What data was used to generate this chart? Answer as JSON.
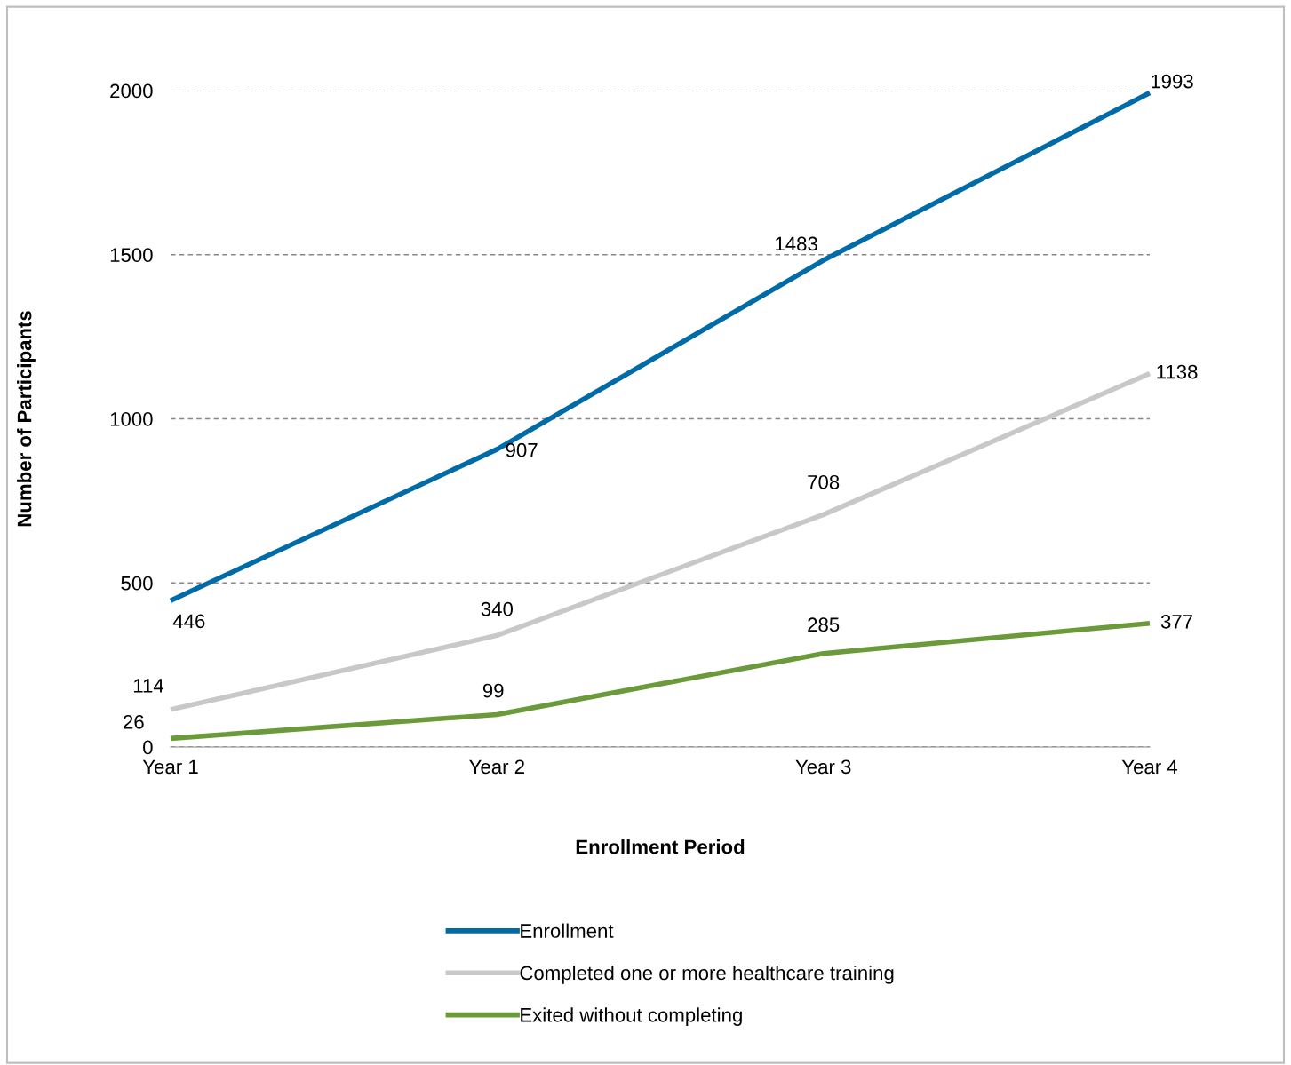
{
  "chart_data": {
    "type": "line",
    "xlabel": "Enrollment Period",
    "ylabel": "Number of Participants",
    "categories": [
      "Year 1",
      "Year 2",
      "Year 3",
      "Year 4"
    ],
    "series": [
      {
        "name": "Enrollment",
        "color": "#006ba6",
        "values": [
          446,
          907,
          1483,
          1993
        ]
      },
      {
        "name": "Completed one or more healthcare training",
        "color": "#c8c8c8",
        "values": [
          114,
          340,
          708,
          1138
        ]
      },
      {
        "name": "Exited without completing",
        "color": "#6a9a3a",
        "values": [
          26,
          99,
          285,
          377
        ]
      }
    ],
    "ylim": [
      0,
      2000
    ],
    "yticks": [
      0,
      500,
      1000,
      1500,
      2000
    ],
    "grid": "y",
    "legend": "bottom",
    "data_labels": true,
    "marker": "none",
    "line_style": "solid"
  }
}
